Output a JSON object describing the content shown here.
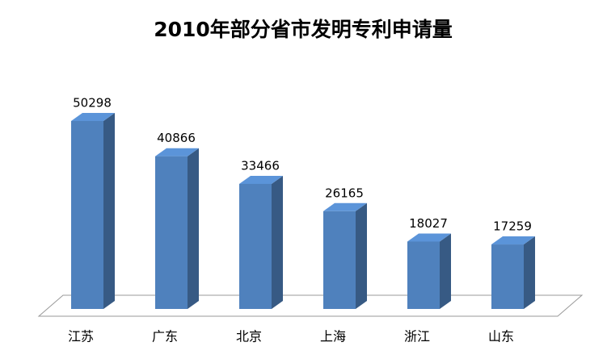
{
  "chart_data": {
    "type": "bar3d",
    "title": "2010年部分省市发明专利申请量",
    "categories": [
      "江苏",
      "广东",
      "北京",
      "上海",
      "浙江",
      "山东"
    ],
    "values": [
      50298,
      40866,
      33466,
      26165,
      18027,
      17259
    ],
    "color": "#4f81bd"
  }
}
